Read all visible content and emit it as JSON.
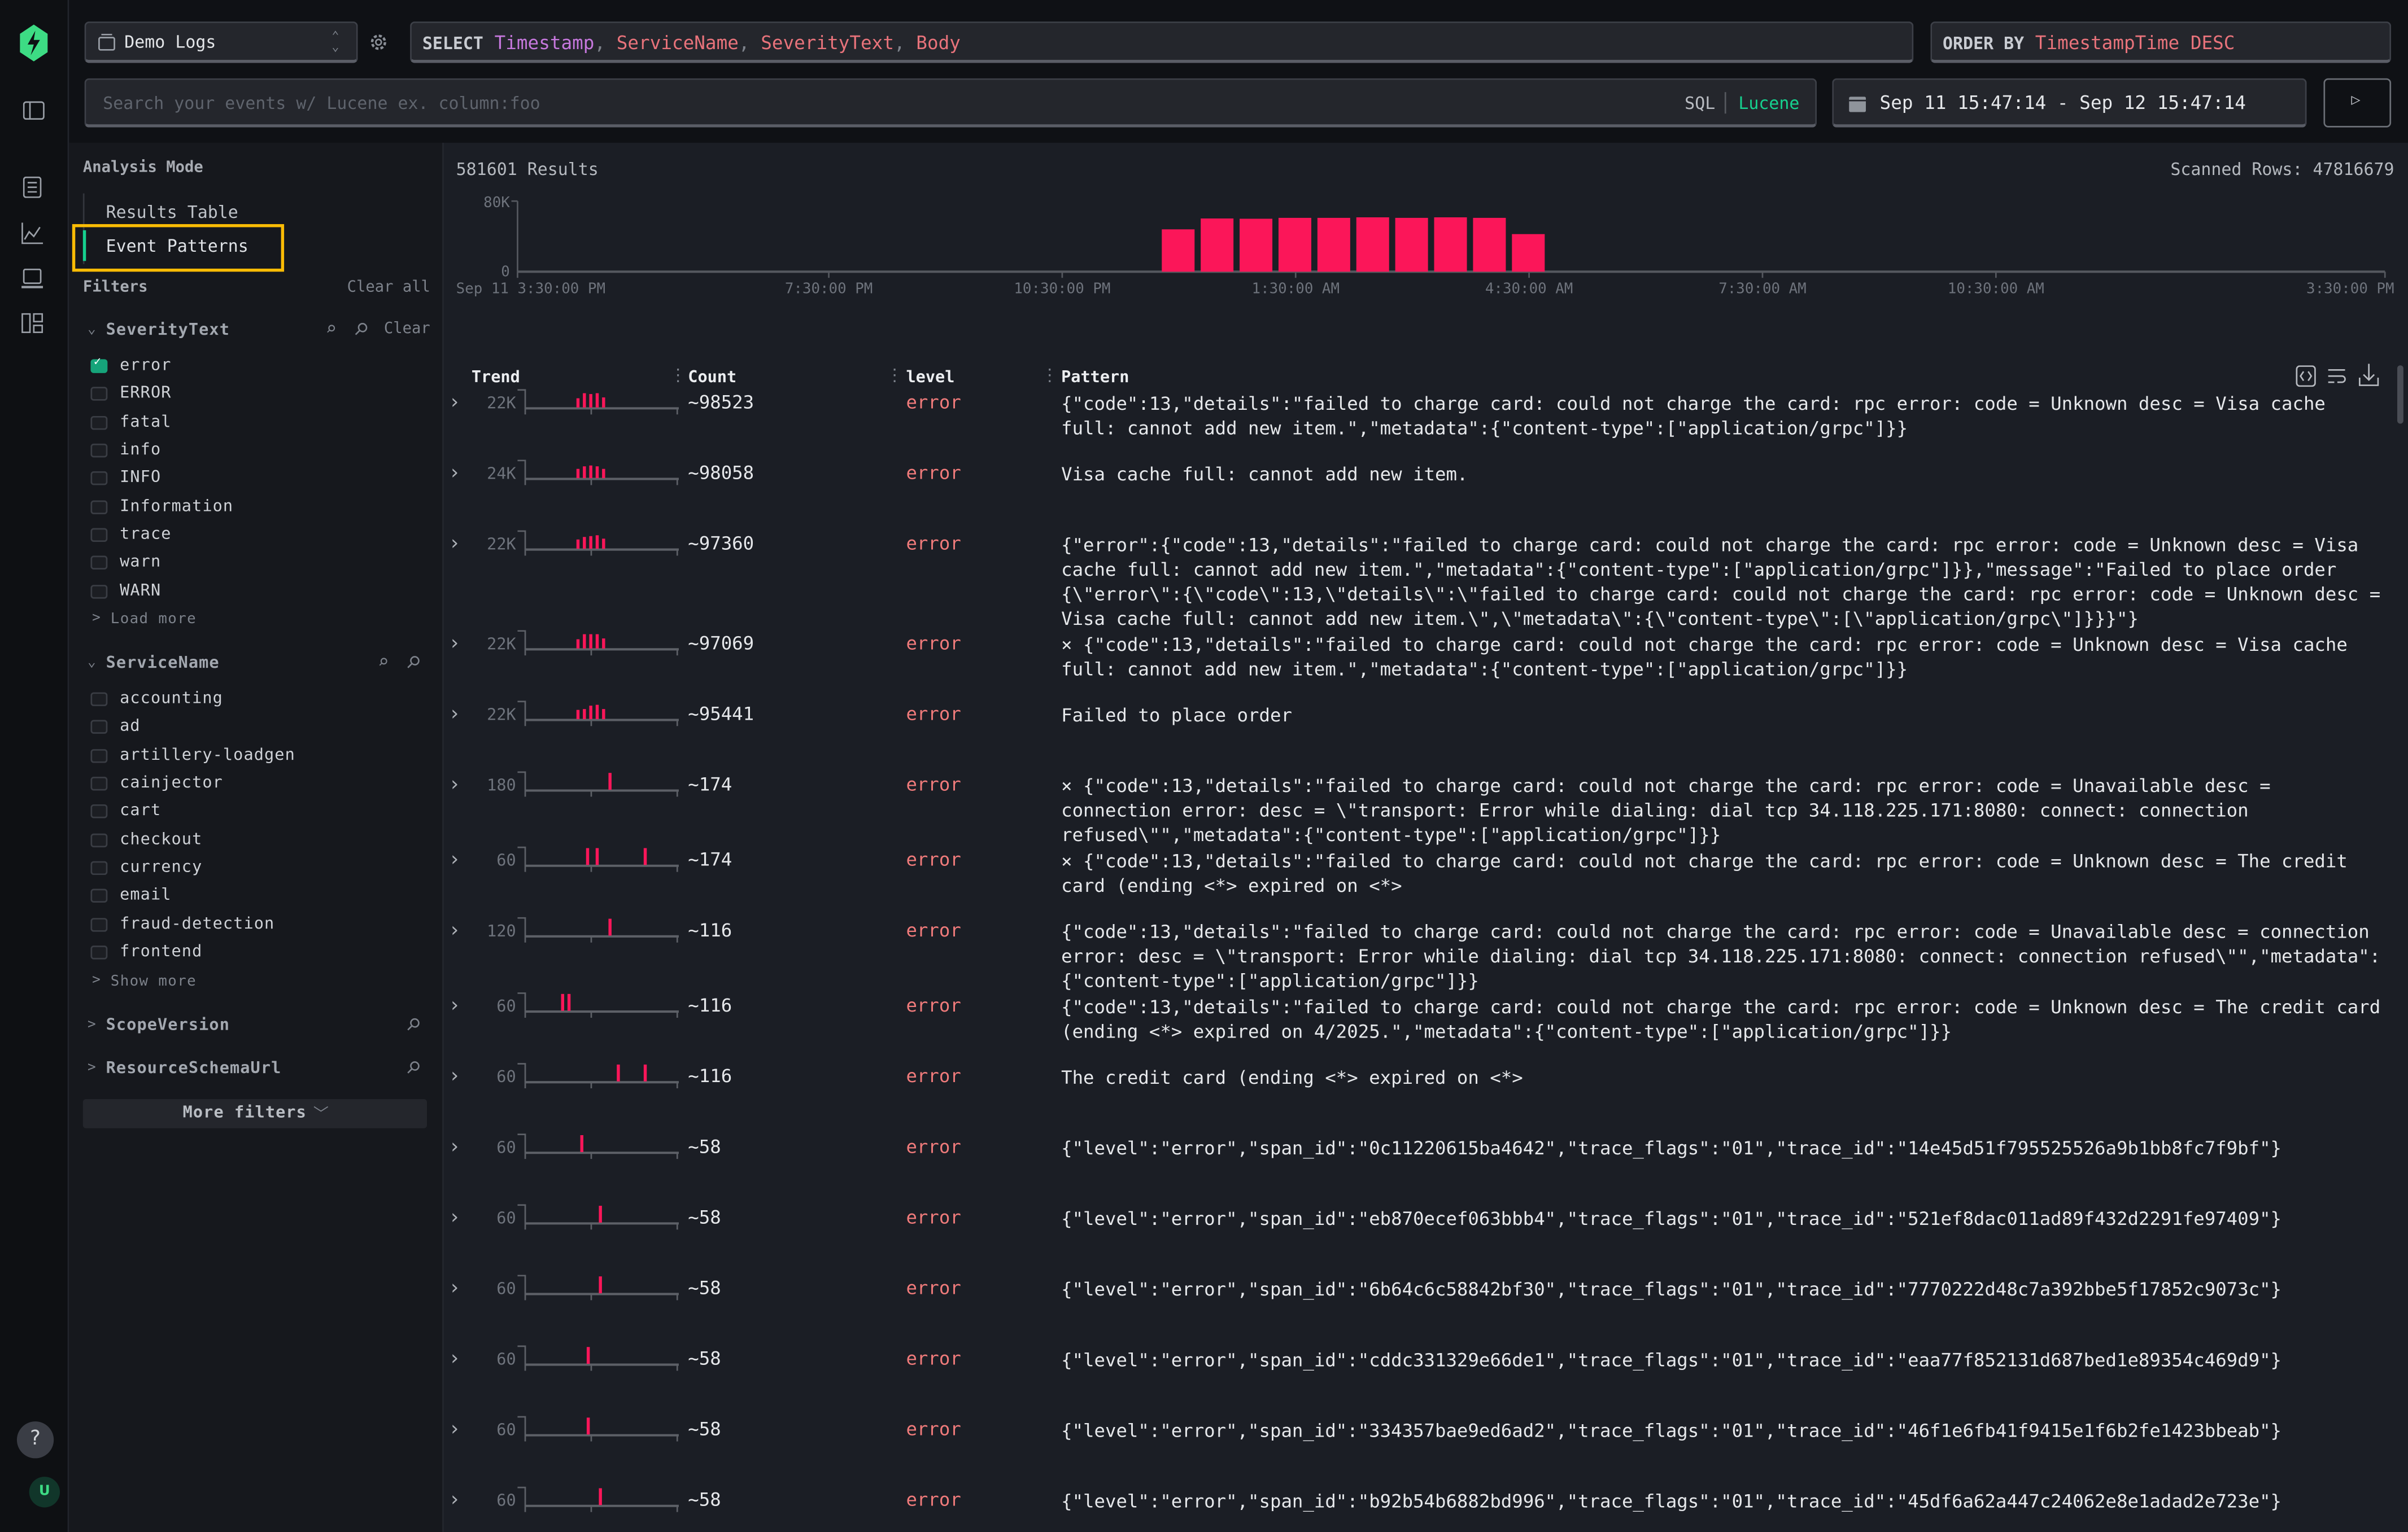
{
  "source": {
    "label": "Demo Logs",
    "icon": "database-icon"
  },
  "query": {
    "select_keyword": "SELECT",
    "select_columns": [
      "Timestamp",
      "ServiceName",
      "SeverityText",
      "Body"
    ],
    "order_keyword": "ORDER BY",
    "order_value": "TimestampTime DESC"
  },
  "search": {
    "placeholder": "Search your events w/ Lucene ex. column:foo",
    "mode_sql": "SQL",
    "mode_lucene": "Lucene",
    "active_mode": "Lucene"
  },
  "time_range": {
    "label": "Sep 11 15:47:14 - Sep 12 15:47:14"
  },
  "colors": {
    "accent_green": "#16d18f",
    "bar_pink": "#fb1659",
    "highlight_yellow": "#fbbc05",
    "level_error": "#f07b7b"
  },
  "sidebar": {
    "analysis_mode_title": "Analysis Mode",
    "modes": [
      {
        "label": "Results Table",
        "active": false
      },
      {
        "label": "Event Patterns",
        "active": true
      }
    ],
    "filters_title": "Filters",
    "clear_all": "Clear all",
    "groups": [
      {
        "name": "SeverityText",
        "expanded": true,
        "clear": "Clear",
        "items": [
          {
            "label": "error",
            "checked": true
          },
          {
            "label": "ERROR",
            "checked": false
          },
          {
            "label": "fatal",
            "checked": false
          },
          {
            "label": "info",
            "checked": false
          },
          {
            "label": "INFO",
            "checked": false
          },
          {
            "label": "Information",
            "checked": false
          },
          {
            "label": "trace",
            "checked": false
          },
          {
            "label": "warn",
            "checked": false
          },
          {
            "label": "WARN",
            "checked": false
          }
        ],
        "more": "Load more"
      },
      {
        "name": "ServiceName",
        "expanded": true,
        "items": [
          {
            "label": "accounting",
            "checked": false
          },
          {
            "label": "ad",
            "checked": false
          },
          {
            "label": "artillery-loadgen",
            "checked": false
          },
          {
            "label": "cainjector",
            "checked": false
          },
          {
            "label": "cart",
            "checked": false
          },
          {
            "label": "checkout",
            "checked": false
          },
          {
            "label": "currency",
            "checked": false
          },
          {
            "label": "email",
            "checked": false
          },
          {
            "label": "fraud-detection",
            "checked": false
          },
          {
            "label": "frontend",
            "checked": false
          }
        ],
        "more": "Show more"
      },
      {
        "name": "ScopeVersion",
        "expanded": false
      },
      {
        "name": "ResourceSchemaUrl",
        "expanded": false
      }
    ],
    "more_filters": "More filters"
  },
  "results": {
    "count_label": "581601 Results",
    "scanned_label": "Scanned Rows: 47816679"
  },
  "chart_data": {
    "type": "bar",
    "ylim": [
      0,
      80000
    ],
    "y_tick_labels": [
      "80K",
      "0"
    ],
    "x_tick_labels": [
      "Sep 11 3:30:00 PM",
      "7:30:00 PM",
      "10:30:00 PM",
      "1:30:00 AM",
      "4:30:00 AM",
      "7:30:00 AM",
      "10:30:00 AM",
      "3:30:00 PM"
    ],
    "x_tick_hours": [
      0,
      4,
      7,
      10,
      13,
      16,
      19,
      24
    ],
    "bucket_minutes": 30,
    "x": [
      "Sep 11 23:47",
      "Sep 12 00:17",
      "Sep 12 00:47",
      "Sep 12 01:17",
      "Sep 12 01:47",
      "Sep 12 02:17",
      "Sep 12 02:47",
      "Sep 12 03:17",
      "Sep 12 03:47",
      "Sep 12 04:17"
    ],
    "values": [
      48000,
      60300,
      60000,
      61000,
      61000,
      61600,
      61000,
      61600,
      61000,
      42600
    ],
    "bar_color": "#fb1659"
  },
  "table": {
    "columns": [
      "Trend",
      "Count",
      "level",
      "Pattern"
    ],
    "toolbar_icons": [
      "code-icon",
      "wrap-icon",
      "download-icon"
    ],
    "rows": [
      {
        "trend_max": "22K",
        "trend": [
          [
            8,
            0.55
          ],
          [
            9,
            0.85
          ],
          [
            10,
            0.8
          ],
          [
            11,
            0.85
          ],
          [
            12,
            0.6
          ]
        ],
        "count": "~98523",
        "level": "error",
        "pattern": "{\"code\":13,\"details\":\"failed to charge card: could not charge the card: rpc error: code = Unknown desc = Visa cache full: cannot add new item.\",\"metadata\":{\"content-type\":[\"application/grpc\"]}}"
      },
      {
        "trend_max": "24K",
        "trend": [
          [
            8,
            0.55
          ],
          [
            9,
            0.7
          ],
          [
            10,
            0.75
          ],
          [
            11,
            0.7
          ],
          [
            12,
            0.55
          ]
        ],
        "count": "~98058",
        "level": "error",
        "pattern": "Visa cache full: cannot add new item."
      },
      {
        "trend_max": "22K",
        "trend": [
          [
            8,
            0.55
          ],
          [
            9,
            0.7
          ],
          [
            10,
            0.75
          ],
          [
            11,
            0.8
          ],
          [
            12,
            0.6
          ]
        ],
        "count": "~97360",
        "level": "error",
        "pattern": "{\"error\":{\"code\":13,\"details\":\"failed to charge card: could not charge the card: rpc error: code = Unknown desc = Visa cache full: cannot add new item.\",\"metadata\":{\"content-type\":[\"application/grpc\"]}},\"message\":\"Failed to place order {\\\"error\\\":{\\\"code\\\":13,\\\"details\\\":\\\"failed to charge card: could not charge the card: rpc error: code = Unknown desc = Visa cache full: cannot add new item.\\\",\\\"metadata\\\":{\\\"content-type\\\":[\\\"application/grpc\\\"]}}}\"}"
      },
      {
        "trend_max": "22K",
        "trend": [
          [
            8,
            0.55
          ],
          [
            9,
            0.85
          ],
          [
            10,
            0.85
          ],
          [
            11,
            0.85
          ],
          [
            12,
            0.6
          ]
        ],
        "count": "~97069",
        "level": "error",
        "pattern": "× {\"code\":13,\"details\":\"failed to charge card: could not charge the card: rpc error: code = Unknown desc = Visa cache full: cannot add new item.\",\"metadata\":{\"content-type\":[\"application/grpc\"]}}"
      },
      {
        "trend_max": "22K",
        "trend": [
          [
            8,
            0.55
          ],
          [
            9,
            0.6
          ],
          [
            10,
            0.8
          ],
          [
            11,
            0.85
          ],
          [
            12,
            0.6
          ]
        ],
        "count": "~95441",
        "level": "error",
        "pattern": "Failed to place order"
      },
      {
        "trend_max": "180",
        "trend": [
          [
            13,
            1
          ]
        ],
        "count": "~174",
        "level": "error",
        "pattern": "× {\"code\":13,\"details\":\"failed to charge card: could not charge the card: rpc error: code = Unavailable desc = connection error: desc = \\\"transport: Error while dialing: dial tcp 34.118.225.171:8080: connect: connection refused\\\"\",\"metadata\":{\"content-type\":[\"application/grpc\"]}}"
      },
      {
        "trend_max": "60",
        "trend": [
          [
            9.5,
            1
          ],
          [
            11,
            1
          ],
          [
            18.5,
            1
          ]
        ],
        "count": "~174",
        "level": "error",
        "pattern": "× {\"code\":13,\"details\":\"failed to charge card: could not charge the card: rpc error: code = Unknown desc = The credit card (ending <*> expired on <*>"
      },
      {
        "trend_max": "120",
        "trend": [
          [
            13,
            1
          ]
        ],
        "count": "~116",
        "level": "error",
        "pattern": "{\"code\":13,\"details\":\"failed to charge card: could not charge the card: rpc error: code = Unavailable desc = connection error: desc = \\\"transport: Error while dialing: dial tcp 34.118.225.171:8080: connect: connection refused\\\"\",\"metadata\":{\"content-type\":[\"application/grpc\"]}}"
      },
      {
        "trend_max": "60",
        "trend": [
          [
            5.6,
            1
          ],
          [
            6.6,
            1
          ]
        ],
        "count": "~116",
        "level": "error",
        "pattern": "{\"code\":13,\"details\":\"failed to charge card: could not charge the card: rpc error: code = Unknown desc = The credit card (ending <*> expired on 4/2025.\",\"metadata\":{\"content-type\":[\"application/grpc\"]}}"
      },
      {
        "trend_max": "60",
        "trend": [
          [
            14.3,
            1
          ],
          [
            18.5,
            1
          ]
        ],
        "count": "~116",
        "level": "error",
        "pattern": "The credit card (ending <*> expired on <*>"
      },
      {
        "trend_max": "60",
        "trend": [
          [
            8.6,
            1
          ]
        ],
        "count": "~58",
        "level": "error",
        "pattern": "{\"level\":\"error\",\"span_id\":\"0c11220615ba4642\",\"trace_flags\":\"01\",\"trace_id\":\"14e45d51f795525526a9b1bb8fc7f9bf\"}"
      },
      {
        "trend_max": "60",
        "trend": [
          [
            11.5,
            1
          ]
        ],
        "count": "~58",
        "level": "error",
        "pattern": "{\"level\":\"error\",\"span_id\":\"eb870ecef063bbb4\",\"trace_flags\":\"01\",\"trace_id\":\"521ef8dac011ad89f432d2291fe97409\"}"
      },
      {
        "trend_max": "60",
        "trend": [
          [
            11.5,
            1
          ]
        ],
        "count": "~58",
        "level": "error",
        "pattern": "{\"level\":\"error\",\"span_id\":\"6b64c6c58842bf30\",\"trace_flags\":\"01\",\"trace_id\":\"7770222d48c7a392bbe5f17852c9073c\"}"
      },
      {
        "trend_max": "60",
        "trend": [
          [
            9.6,
            1
          ]
        ],
        "count": "~58",
        "level": "error",
        "pattern": "{\"level\":\"error\",\"span_id\":\"cddc331329e66de1\",\"trace_flags\":\"01\",\"trace_id\":\"eaa77f852131d687bed1e89354c469d9\"}"
      },
      {
        "trend_max": "60",
        "trend": [
          [
            9.6,
            1
          ]
        ],
        "count": "~58",
        "level": "error",
        "pattern": "{\"level\":\"error\",\"span_id\":\"334357bae9ed6ad2\",\"trace_flags\":\"01\",\"trace_id\":\"46f1e6fb41f9415e1f6b2fe1423bbeab\"}"
      },
      {
        "trend_max": "60",
        "trend": [
          [
            11.5,
            1
          ]
        ],
        "count": "~58",
        "level": "error",
        "pattern": "{\"level\":\"error\",\"span_id\":\"b92b54b6882bd996\",\"trace_flags\":\"01\",\"trace_id\":\"45df6a62a447c24062e8e1adad2e723e\"}"
      }
    ]
  },
  "rail": {
    "help": "?",
    "avatar": "U"
  }
}
